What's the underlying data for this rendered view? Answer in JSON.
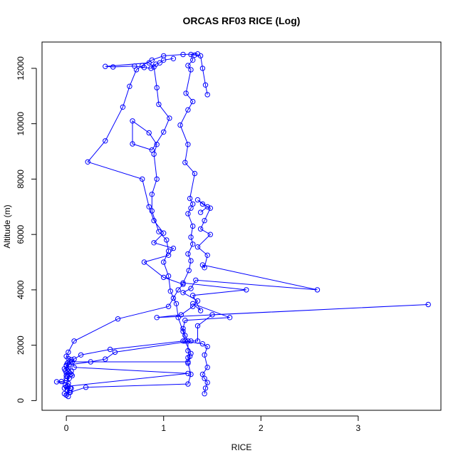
{
  "chart_data": {
    "type": "line",
    "title": "ORCAS RF03 RICE (Log)",
    "xlabel": "RICE",
    "ylabel": "Altitude (m)",
    "xlim": [
      -0.25,
      3.85
    ],
    "ylim": [
      -350,
      12950
    ],
    "x_ticks": [
      0,
      1,
      2,
      3
    ],
    "y_ticks": [
      0,
      2000,
      4000,
      6000,
      8000,
      10000,
      12000
    ],
    "grid": false,
    "legend": "none",
    "marker": "open-circle",
    "color": "#0000ff",
    "series": [
      {
        "values": [
          [
            0.02,
            150
          ],
          [
            0.0,
            200
          ],
          [
            -0.02,
            250
          ],
          [
            0.03,
            300
          ],
          [
            0.01,
            380
          ],
          [
            0.04,
            450
          ],
          [
            0.0,
            500
          ],
          [
            -0.01,
            560
          ],
          [
            0.02,
            620
          ],
          [
            -0.1,
            680
          ],
          [
            -0.05,
            690
          ],
          [
            0.0,
            720
          ],
          [
            0.03,
            800
          ],
          [
            0.01,
            880
          ],
          [
            0.05,
            950
          ],
          [
            0.0,
            1000
          ],
          [
            -0.01,
            1080
          ],
          [
            0.02,
            1150
          ],
          [
            0.0,
            1250
          ],
          [
            0.01,
            1350
          ],
          [
            0.03,
            1420
          ],
          [
            0.05,
            1480
          ],
          [
            0.02,
            1520
          ],
          [
            0.0,
            1600
          ],
          [
            0.02,
            1750
          ],
          [
            0.08,
            2150
          ],
          [
            0.53,
            2950
          ],
          [
            1.05,
            3400
          ],
          [
            1.1,
            3700
          ],
          [
            1.15,
            4000
          ],
          [
            1.2,
            4200
          ],
          [
            1.0,
            4450
          ],
          [
            0.8,
            5000
          ],
          [
            1.05,
            5250
          ],
          [
            1.1,
            5500
          ],
          [
            0.9,
            5700
          ],
          [
            1.0,
            6050
          ],
          [
            0.9,
            6500
          ],
          [
            0.85,
            7000
          ],
          [
            0.78,
            8000
          ],
          [
            0.22,
            8620
          ],
          [
            0.4,
            9380
          ],
          [
            0.58,
            10600
          ],
          [
            0.65,
            11350
          ],
          [
            0.72,
            11950
          ],
          [
            0.78,
            12100
          ],
          [
            0.88,
            12300
          ],
          [
            1.0,
            12450
          ],
          [
            1.2,
            12500
          ],
          [
            1.35,
            12520
          ]
        ]
      },
      {
        "values": [
          [
            0.0,
            200
          ],
          [
            0.04,
            300
          ],
          [
            0.2,
            480
          ],
          [
            1.25,
            600
          ],
          [
            1.28,
            950
          ],
          [
            1.25,
            1350
          ],
          [
            1.25,
            1550
          ],
          [
            1.28,
            1700
          ],
          [
            1.22,
            2150
          ],
          [
            1.2,
            2500
          ],
          [
            1.15,
            3000
          ],
          [
            1.13,
            3500
          ],
          [
            1.07,
            3950
          ],
          [
            1.05,
            4500
          ],
          [
            1.0,
            5000
          ],
          [
            1.05,
            5400
          ],
          [
            1.03,
            5800
          ],
          [
            0.95,
            6100
          ],
          [
            0.88,
            6850
          ],
          [
            0.88,
            7450
          ],
          [
            0.93,
            8000
          ],
          [
            0.9,
            8900
          ],
          [
            0.93,
            9250
          ],
          [
            0.85,
            9670
          ],
          [
            0.68,
            10100
          ],
          [
            0.68,
            9270
          ],
          [
            0.88,
            9050
          ],
          [
            1.0,
            9700
          ],
          [
            1.06,
            10200
          ],
          [
            0.95,
            10700
          ],
          [
            0.93,
            11300
          ],
          [
            0.9,
            12050
          ],
          [
            0.85,
            12200
          ],
          [
            0.4,
            12070
          ],
          [
            0.48,
            12050
          ],
          [
            0.7,
            12080
          ],
          [
            0.8,
            12030
          ],
          [
            0.87,
            12000
          ],
          [
            0.92,
            12150
          ],
          [
            0.96,
            12200
          ],
          [
            1.0,
            12300
          ],
          [
            1.1,
            12350
          ]
        ]
      },
      {
        "values": [
          [
            0.05,
            440
          ],
          [
            -0.02,
            450
          ],
          [
            0.02,
            520
          ],
          [
            1.25,
            980
          ],
          [
            0.08,
            1200
          ],
          [
            0.06,
            1400
          ],
          [
            1.25,
            1400
          ],
          [
            1.27,
            1600
          ],
          [
            1.25,
            1800
          ],
          [
            1.25,
            2150
          ],
          [
            1.22,
            2350
          ],
          [
            1.2,
            2600
          ],
          [
            1.22,
            2900
          ],
          [
            1.68,
            3000
          ],
          [
            1.3,
            3500
          ],
          [
            1.38,
            3250
          ],
          [
            1.3,
            3800
          ],
          [
            1.85,
            4000
          ],
          [
            1.2,
            4250
          ],
          [
            1.26,
            4700
          ],
          [
            1.28,
            5050
          ],
          [
            1.25,
            5300
          ],
          [
            1.3,
            5650
          ],
          [
            1.28,
            5900
          ],
          [
            1.3,
            6300
          ],
          [
            1.25,
            6750
          ],
          [
            1.28,
            6950
          ],
          [
            1.3,
            7100
          ],
          [
            1.27,
            7300
          ],
          [
            1.32,
            8200
          ],
          [
            1.22,
            8600
          ],
          [
            1.25,
            9250
          ],
          [
            1.17,
            9950
          ],
          [
            1.25,
            10500
          ],
          [
            1.3,
            10800
          ],
          [
            1.23,
            11100
          ],
          [
            1.28,
            11950
          ],
          [
            1.25,
            12100
          ],
          [
            1.3,
            12300
          ],
          [
            1.28,
            12500
          ],
          [
            1.32,
            12480
          ],
          [
            1.38,
            12450
          ],
          [
            1.4,
            12000
          ],
          [
            1.43,
            11400
          ],
          [
            1.45,
            11050
          ]
        ]
      },
      {
        "values": [
          [
            0.0,
            800
          ],
          [
            0.06,
            900
          ],
          [
            0.05,
            1060
          ],
          [
            0.0,
            1280
          ],
          [
            0.25,
            1400
          ],
          [
            0.4,
            1500
          ],
          [
            0.5,
            1750
          ],
          [
            1.28,
            2150
          ],
          [
            1.35,
            2150
          ],
          [
            1.35,
            2700
          ],
          [
            1.5,
            3100
          ],
          [
            3.72,
            3470
          ],
          [
            0.93,
            3000
          ],
          [
            1.18,
            3100
          ],
          [
            1.3,
            3400
          ],
          [
            1.35,
            3600
          ],
          [
            1.2,
            3900
          ],
          [
            1.28,
            4050
          ],
          [
            1.33,
            4350
          ],
          [
            2.58,
            4000
          ],
          [
            1.4,
            4900
          ],
          [
            1.42,
            4800
          ],
          [
            1.45,
            5250
          ],
          [
            1.35,
            5550
          ],
          [
            1.48,
            6000
          ],
          [
            1.38,
            6200
          ],
          [
            1.42,
            6500
          ],
          [
            1.48,
            6950
          ],
          [
            1.4,
            7100
          ],
          [
            1.35,
            7250
          ],
          [
            1.45,
            7000
          ],
          [
            1.38,
            6800
          ]
        ]
      },
      {
        "values": [
          [
            0.0,
            900
          ],
          [
            0.02,
            1050
          ],
          [
            -0.02,
            1150
          ],
          [
            0.03,
            1300
          ],
          [
            0.08,
            1500
          ],
          [
            0.15,
            1650
          ],
          [
            0.45,
            1850
          ],
          [
            1.2,
            2150
          ],
          [
            1.4,
            2050
          ],
          [
            1.45,
            1950
          ],
          [
            1.42,
            1650
          ],
          [
            1.45,
            1200
          ],
          [
            1.4,
            950
          ],
          [
            1.42,
            800
          ],
          [
            1.45,
            650
          ],
          [
            1.43,
            450
          ],
          [
            1.42,
            250
          ]
        ]
      }
    ]
  }
}
